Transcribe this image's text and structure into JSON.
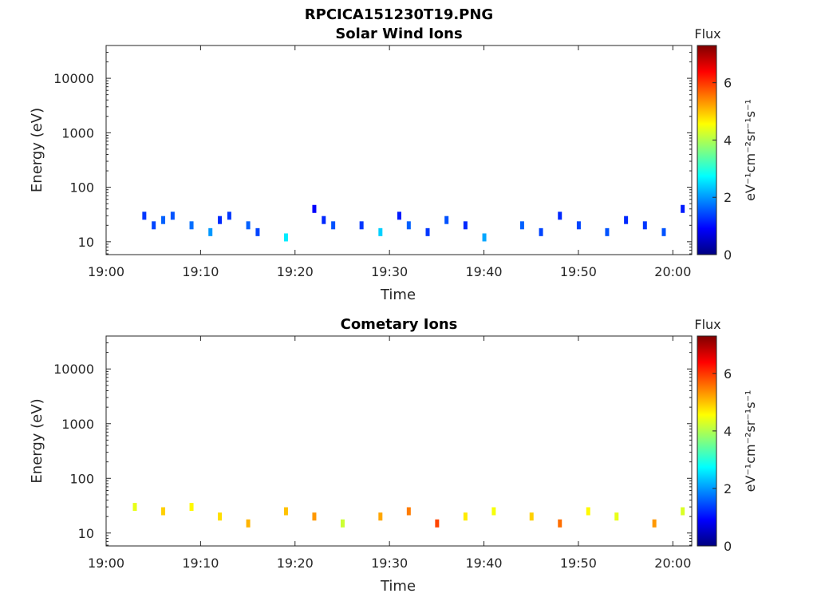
{
  "figure": {
    "filename": "RPCICA151230T19.PNG"
  },
  "chart_data": [
    {
      "type": "heatmap",
      "title": "Solar Wind Ions",
      "xlabel": "Time",
      "ylabel": "Energy (eV)",
      "x_ticks": [
        "19:00",
        "19:10",
        "19:20",
        "19:30",
        "19:40",
        "19:50",
        "20:00"
      ],
      "x_range": [
        "19:00",
        "20:02"
      ],
      "y_scale": "log",
      "y_ticks": [
        10,
        100,
        1000,
        10000
      ],
      "y_range": [
        5.8,
        40000
      ],
      "colorbar": {
        "label": "eV⁻¹cm⁻²sr⁻¹s⁻¹",
        "title": "Flux",
        "ticks": [
          0,
          2,
          4,
          6
        ],
        "range": [
          0,
          7.3
        ],
        "colormap": "jet"
      },
      "grid": false,
      "cells": [
        {
          "t": "19:04",
          "e": 30,
          "v": 1.3
        },
        {
          "t": "19:05",
          "e": 20,
          "v": 1.4
        },
        {
          "t": "19:06",
          "e": 25,
          "v": 1.6
        },
        {
          "t": "19:07",
          "e": 30,
          "v": 1.5
        },
        {
          "t": "19:09",
          "e": 20,
          "v": 1.7
        },
        {
          "t": "19:11",
          "e": 15,
          "v": 2.0
        },
        {
          "t": "19:12",
          "e": 25,
          "v": 1.2
        },
        {
          "t": "19:13",
          "e": 30,
          "v": 1.3
        },
        {
          "t": "19:15",
          "e": 20,
          "v": 1.6
        },
        {
          "t": "19:16",
          "e": 15,
          "v": 1.4
        },
        {
          "t": "19:19",
          "e": 12,
          "v": 2.6
        },
        {
          "t": "19:22",
          "e": 40,
          "v": 0.9
        },
        {
          "t": "19:23",
          "e": 25,
          "v": 1.2
        },
        {
          "t": "19:24",
          "e": 20,
          "v": 1.5
        },
        {
          "t": "19:27",
          "e": 20,
          "v": 1.3
        },
        {
          "t": "19:29",
          "e": 15,
          "v": 2.4
        },
        {
          "t": "19:31",
          "e": 30,
          "v": 1.1
        },
        {
          "t": "19:32",
          "e": 20,
          "v": 1.6
        },
        {
          "t": "19:34",
          "e": 15,
          "v": 1.3
        },
        {
          "t": "19:36",
          "e": 25,
          "v": 1.5
        },
        {
          "t": "19:38",
          "e": 20,
          "v": 1.2
        },
        {
          "t": "19:40",
          "e": 12,
          "v": 2.1
        },
        {
          "t": "19:44",
          "e": 20,
          "v": 1.6
        },
        {
          "t": "19:46",
          "e": 15,
          "v": 1.4
        },
        {
          "t": "19:48",
          "e": 30,
          "v": 1.2
        },
        {
          "t": "19:50",
          "e": 20,
          "v": 1.4
        },
        {
          "t": "19:53",
          "e": 15,
          "v": 1.5
        },
        {
          "t": "19:55",
          "e": 25,
          "v": 1.2
        },
        {
          "t": "19:57",
          "e": 20,
          "v": 1.3
        },
        {
          "t": "19:59",
          "e": 15,
          "v": 1.5
        },
        {
          "t": "20:01",
          "e": 40,
          "v": 1.1
        }
      ]
    },
    {
      "type": "heatmap",
      "title": "Cometary Ions",
      "xlabel": "Time",
      "ylabel": "Energy (eV)",
      "x_ticks": [
        "19:00",
        "19:10",
        "19:20",
        "19:30",
        "19:40",
        "19:50",
        "20:00"
      ],
      "x_range": [
        "19:00",
        "20:02"
      ],
      "y_scale": "log",
      "y_ticks": [
        10,
        100,
        1000,
        10000
      ],
      "y_range": [
        5.8,
        40000
      ],
      "colorbar": {
        "label": "eV⁻¹cm⁻²sr⁻¹s⁻¹",
        "title": "Flux",
        "ticks": [
          0,
          2,
          4,
          6
        ],
        "range": [
          0,
          7.3
        ],
        "colormap": "jet"
      },
      "grid": false,
      "cells": [
        {
          "t": "19:03",
          "e": 30,
          "v": 4.4
        },
        {
          "t": "19:06",
          "e": 25,
          "v": 4.9
        },
        {
          "t": "19:09",
          "e": 30,
          "v": 4.6
        },
        {
          "t": "19:12",
          "e": 20,
          "v": 4.8
        },
        {
          "t": "19:15",
          "e": 15,
          "v": 5.1
        },
        {
          "t": "19:19",
          "e": 25,
          "v": 5.0
        },
        {
          "t": "19:22",
          "e": 20,
          "v": 5.3
        },
        {
          "t": "19:25",
          "e": 15,
          "v": 4.2
        },
        {
          "t": "19:29",
          "e": 20,
          "v": 5.2
        },
        {
          "t": "19:32",
          "e": 25,
          "v": 5.5
        },
        {
          "t": "19:35",
          "e": 15,
          "v": 5.9
        },
        {
          "t": "19:38",
          "e": 20,
          "v": 4.7
        },
        {
          "t": "19:41",
          "e": 25,
          "v": 4.5
        },
        {
          "t": "19:45",
          "e": 20,
          "v": 4.9
        },
        {
          "t": "19:48",
          "e": 15,
          "v": 5.6
        },
        {
          "t": "19:51",
          "e": 25,
          "v": 4.6
        },
        {
          "t": "19:54",
          "e": 20,
          "v": 4.4
        },
        {
          "t": "19:58",
          "e": 15,
          "v": 5.3
        },
        {
          "t": "20:01",
          "e": 25,
          "v": 4.3
        }
      ]
    }
  ]
}
